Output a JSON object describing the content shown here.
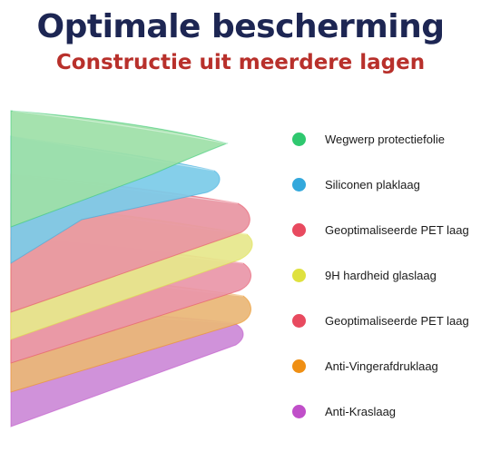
{
  "header": {
    "title": "Optimale bescherming",
    "subtitle": "Constructie uit meerdere lagen"
  },
  "layers": [
    {
      "label": "Wegwerp protectiefolie",
      "color": "#2fc86f",
      "fill": "#9ee0a8"
    },
    {
      "label": "Siliconen plaklaag",
      "color": "#33a8dc",
      "fill": "#7ccbe8"
    },
    {
      "label": "Geoptimaliseerde PET laag",
      "color": "#e84a5f",
      "fill": "#e896a3"
    },
    {
      "label": "9H hardheid glaslaag",
      "color": "#dfe13f",
      "fill": "#e6e78c"
    },
    {
      "label": "Geoptimaliseerde PET laag",
      "color": "#e84a5f",
      "fill": "#ea97a9"
    },
    {
      "label": "Anti-Vingerafdruklaag",
      "color": "#ef8f14",
      "fill": "#eab777"
    },
    {
      "label": "Anti-Kraslaag",
      "color": "#c04fc9",
      "fill": "#cc8ad7"
    }
  ]
}
